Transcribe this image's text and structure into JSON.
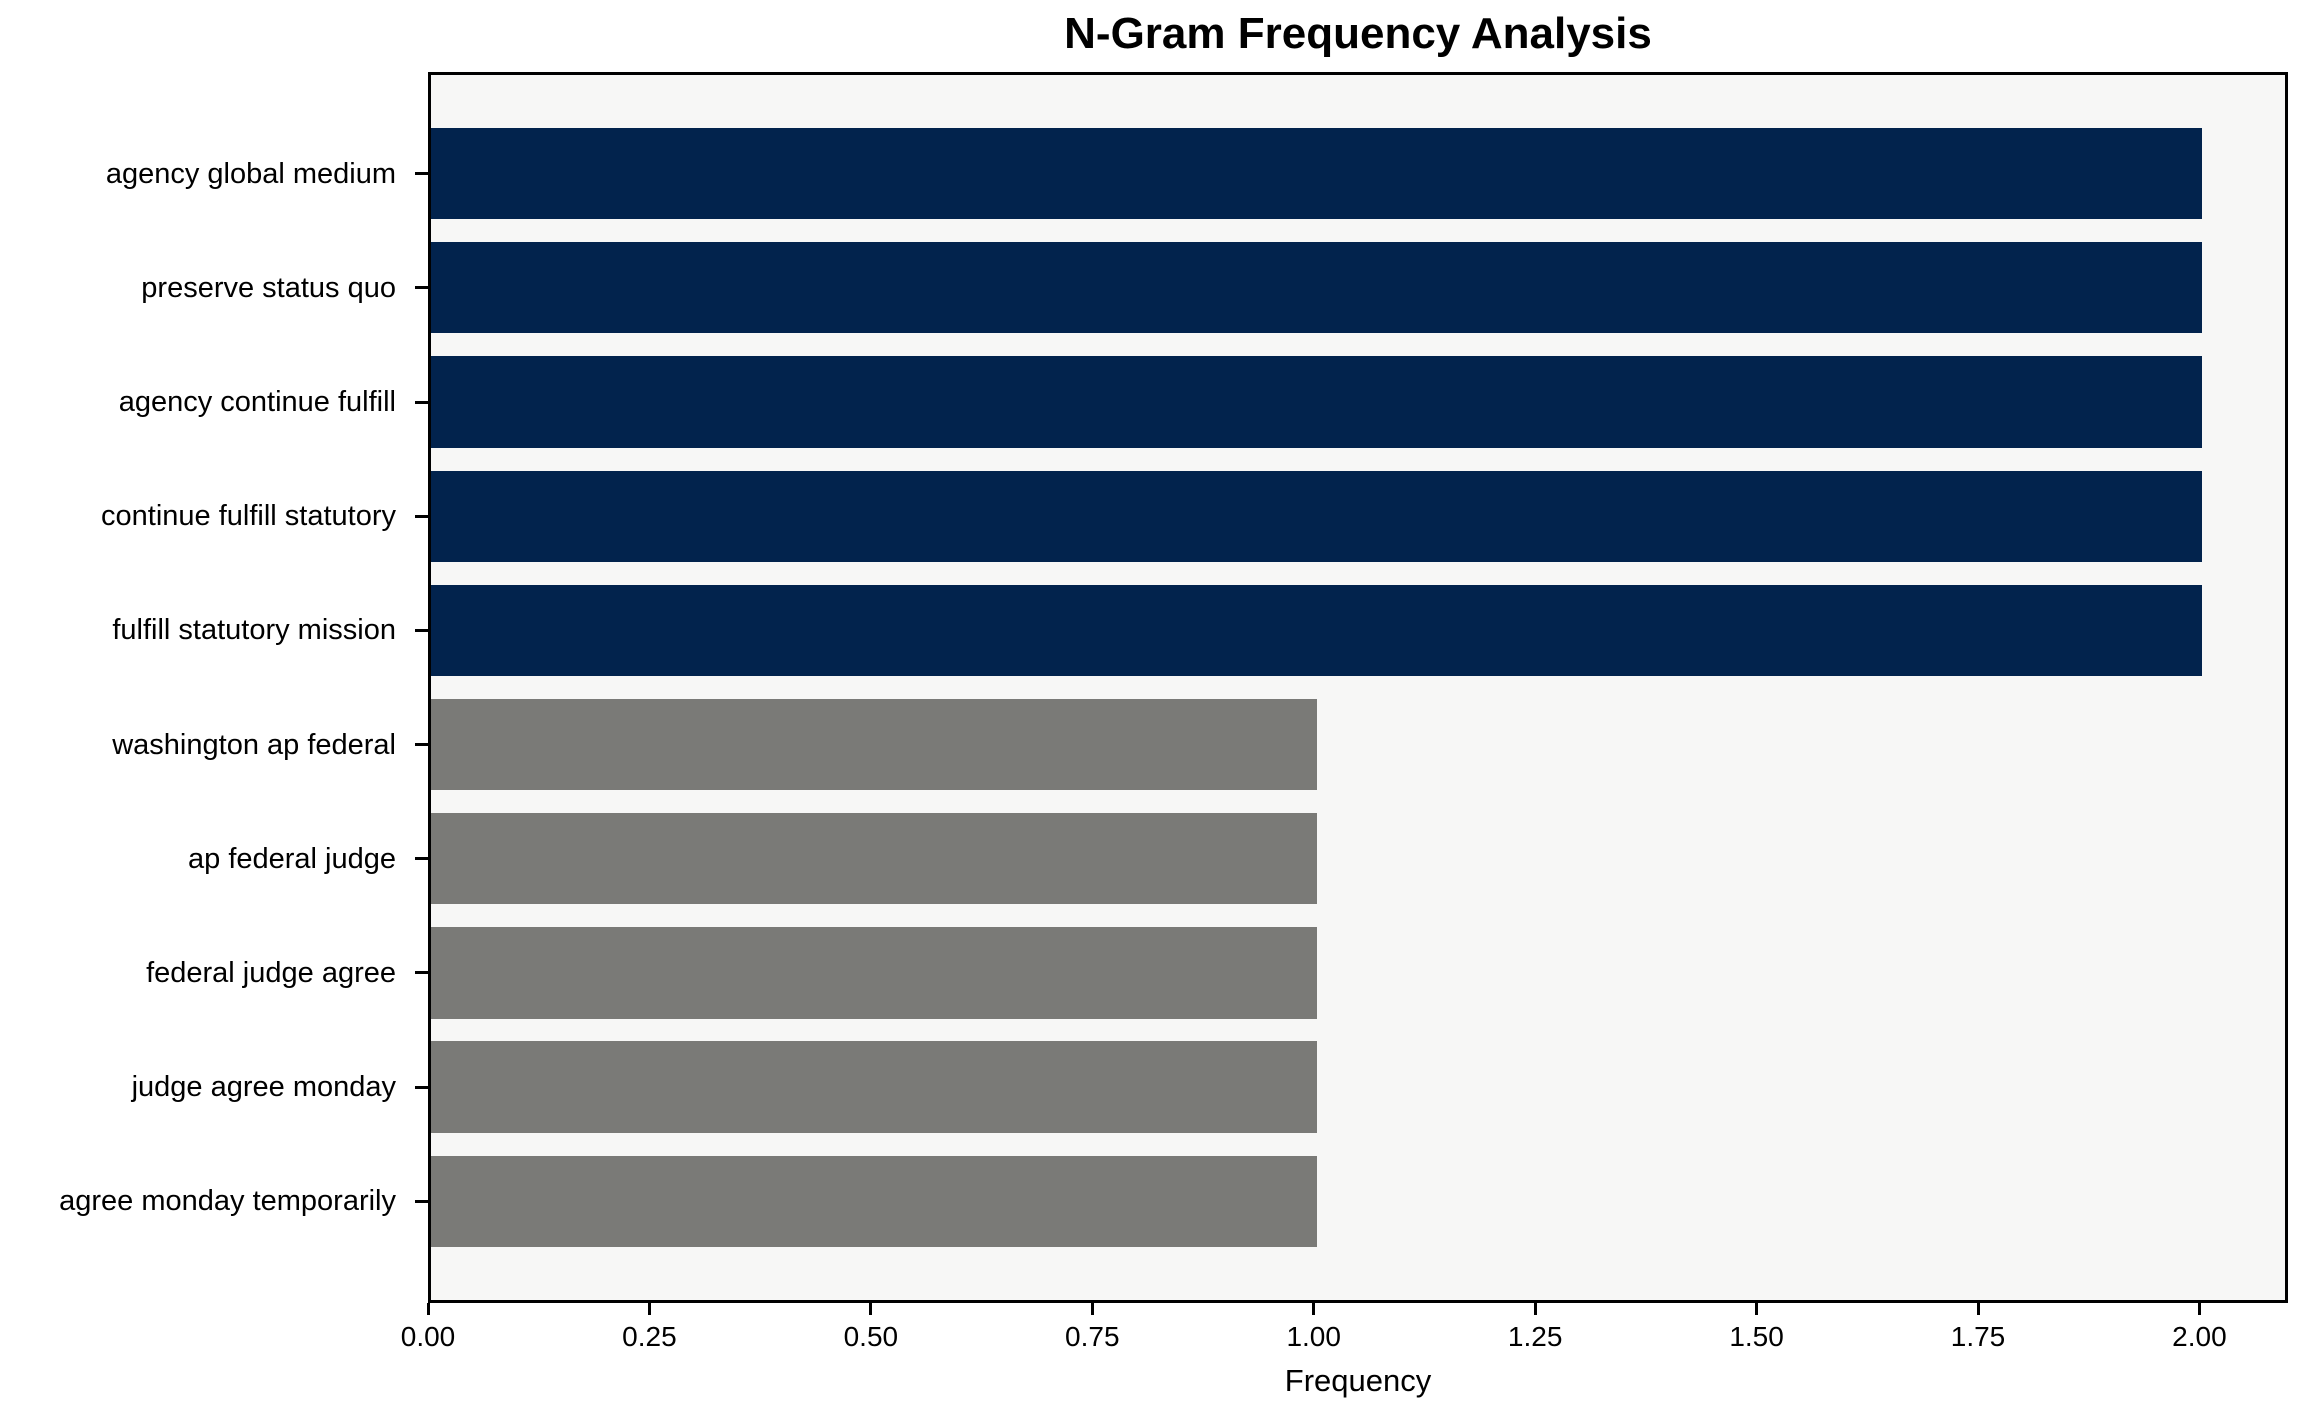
{
  "figure": {
    "title": "N-Gram Frequency Analysis",
    "xlabel": "Frequency"
  },
  "colors": {
    "high_freq_bar": "#02234d",
    "low_freq_bar": "#7a7a77",
    "plot_background": "#f7f7f6",
    "figure_background": "#ffffff",
    "spine": "#000000",
    "text": "#000000"
  },
  "chart_data": {
    "type": "bar",
    "orientation": "horizontal",
    "title": "N-Gram Frequency Analysis",
    "xlabel": "Frequency",
    "ylabel": "",
    "categories": [
      "agency global medium",
      "preserve status quo",
      "agency continue fulfill",
      "continue fulfill statutory",
      "fulfill statutory mission",
      "washington ap federal",
      "ap federal judge",
      "federal judge agree",
      "judge agree monday",
      "agree monday temporarily"
    ],
    "values": [
      2,
      2,
      2,
      2,
      2,
      1,
      1,
      1,
      1,
      1
    ],
    "bar_colors": [
      "#02234d",
      "#02234d",
      "#02234d",
      "#02234d",
      "#02234d",
      "#7a7a77",
      "#7a7a77",
      "#7a7a77",
      "#7a7a77",
      "#7a7a77"
    ],
    "xlim": [
      0,
      2.1
    ],
    "xticks": [
      0,
      0.25,
      0.5,
      0.75,
      1.0,
      1.25,
      1.5,
      1.75,
      2.0
    ],
    "xtick_labels": [
      "0.00",
      "0.25",
      "0.50",
      "0.75",
      "1.00",
      "1.25",
      "1.50",
      "1.75",
      "2.00"
    ],
    "grid": false,
    "legend": null,
    "bar_height_ratio": 0.8
  }
}
